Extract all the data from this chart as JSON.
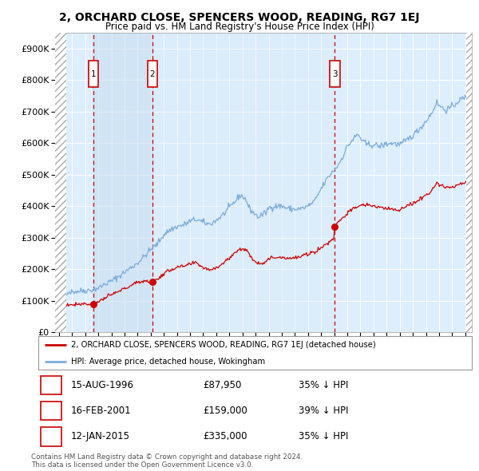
{
  "title": "2, ORCHARD CLOSE, SPENCERS WOOD, READING, RG7 1EJ",
  "subtitle": "Price paid vs. HM Land Registry's House Price Index (HPI)",
  "hpi_color": "#7aacdc",
  "price_color": "#cc0000",
  "plot_bg_color": "#ddeeff",
  "hatch_color": "#bbbbbb",
  "grid_color": "#ffffff",
  "legend_label_price": "2, ORCHARD CLOSE, SPENCERS WOOD, READING, RG7 1EJ (detached house)",
  "legend_label_hpi": "HPI: Average price, detached house, Wokingham",
  "sales": [
    {
      "num": 1,
      "date_dec": 1996.62,
      "price": 87950,
      "label": "15-AUG-1996",
      "price_str": "£87,950",
      "pct": "35% ↓ HPI"
    },
    {
      "num": 2,
      "date_dec": 2001.12,
      "price": 159000,
      "label": "16-FEB-2001",
      "price_str": "£159,000",
      "pct": "39% ↓ HPI"
    },
    {
      "num": 3,
      "date_dec": 2015.04,
      "price": 335000,
      "label": "12-JAN-2015",
      "price_str": "£335,000",
      "pct": "35% ↓ HPI"
    }
  ],
  "footer": "Contains HM Land Registry data © Crown copyright and database right 2024.\nThis data is licensed under the Open Government Licence v3.0.",
  "yticks": [
    0,
    100000,
    200000,
    300000,
    400000,
    500000,
    600000,
    700000,
    800000,
    900000
  ],
  "ytick_labels": [
    "£0",
    "£100K",
    "£200K",
    "£300K",
    "£400K",
    "£500K",
    "£600K",
    "£700K",
    "£800K",
    "£900K"
  ],
  "xlim_start": 1993.7,
  "xlim_end": 2025.5,
  "ylim_max": 950000,
  "hpi_anchors": [
    [
      1993.7,
      120000
    ],
    [
      1994.0,
      122000
    ],
    [
      1994.5,
      126000
    ],
    [
      1995.0,
      128000
    ],
    [
      1995.5,
      130000
    ],
    [
      1996.0,
      132000
    ],
    [
      1996.5,
      134000
    ],
    [
      1997.0,
      140000
    ],
    [
      1997.5,
      152000
    ],
    [
      1998.0,
      162000
    ],
    [
      1998.5,
      175000
    ],
    [
      1999.0,
      190000
    ],
    [
      1999.5,
      205000
    ],
    [
      2000.0,
      220000
    ],
    [
      2000.5,
      240000
    ],
    [
      2001.0,
      262000
    ],
    [
      2001.5,
      280000
    ],
    [
      2002.0,
      310000
    ],
    [
      2002.5,
      325000
    ],
    [
      2003.0,
      335000
    ],
    [
      2003.5,
      340000
    ],
    [
      2004.0,
      352000
    ],
    [
      2004.5,
      358000
    ],
    [
      2005.0,
      348000
    ],
    [
      2005.5,
      342000
    ],
    [
      2006.0,
      355000
    ],
    [
      2006.5,
      372000
    ],
    [
      2007.0,
      395000
    ],
    [
      2007.5,
      418000
    ],
    [
      2007.8,
      435000
    ],
    [
      2008.2,
      425000
    ],
    [
      2008.5,
      395000
    ],
    [
      2008.8,
      380000
    ],
    [
      2009.2,
      365000
    ],
    [
      2009.5,
      372000
    ],
    [
      2009.8,
      380000
    ],
    [
      2010.0,
      395000
    ],
    [
      2010.5,
      400000
    ],
    [
      2011.0,
      400000
    ],
    [
      2011.5,
      392000
    ],
    [
      2012.0,
      390000
    ],
    [
      2012.5,
      392000
    ],
    [
      2013.0,
      400000
    ],
    [
      2013.5,
      415000
    ],
    [
      2014.0,
      455000
    ],
    [
      2014.5,
      490000
    ],
    [
      2015.0,
      515000
    ],
    [
      2015.3,
      530000
    ],
    [
      2015.8,
      570000
    ],
    [
      2016.0,
      590000
    ],
    [
      2016.5,
      615000
    ],
    [
      2016.8,
      628000
    ],
    [
      2017.2,
      605000
    ],
    [
      2017.5,
      595000
    ],
    [
      2018.0,
      595000
    ],
    [
      2018.5,
      590000
    ],
    [
      2019.0,
      598000
    ],
    [
      2019.5,
      600000
    ],
    [
      2020.0,
      595000
    ],
    [
      2020.5,
      608000
    ],
    [
      2021.0,
      625000
    ],
    [
      2021.5,
      645000
    ],
    [
      2022.0,
      670000
    ],
    [
      2022.5,
      700000
    ],
    [
      2022.8,
      730000
    ],
    [
      2023.0,
      720000
    ],
    [
      2023.5,
      705000
    ],
    [
      2024.0,
      715000
    ],
    [
      2024.5,
      735000
    ],
    [
      2025.0,
      745000
    ],
    [
      2025.3,
      750000
    ]
  ],
  "red_anchors": [
    [
      1993.7,
      80000
    ],
    [
      1994.0,
      82000
    ],
    [
      1994.5,
      85000
    ],
    [
      1995.0,
      88000
    ],
    [
      1995.5,
      90000
    ],
    [
      1996.0,
      90000
    ],
    [
      1996.62,
      87950
    ],
    [
      1997.0,
      96000
    ],
    [
      1997.5,
      108000
    ],
    [
      1998.0,
      118000
    ],
    [
      1998.5,
      128000
    ],
    [
      1999.0,
      138000
    ],
    [
      1999.5,
      148000
    ],
    [
      2000.0,
      158000
    ],
    [
      2000.5,
      163000
    ],
    [
      2001.0,
      160000
    ],
    [
      2001.12,
      159000
    ],
    [
      2001.5,
      168000
    ],
    [
      2002.0,
      185000
    ],
    [
      2002.5,
      198000
    ],
    [
      2003.0,
      205000
    ],
    [
      2003.5,
      208000
    ],
    [
      2004.0,
      215000
    ],
    [
      2004.5,
      220000
    ],
    [
      2005.0,
      205000
    ],
    [
      2005.5,
      198000
    ],
    [
      2006.0,
      205000
    ],
    [
      2006.5,
      218000
    ],
    [
      2007.0,
      235000
    ],
    [
      2007.5,
      255000
    ],
    [
      2007.8,
      265000
    ],
    [
      2008.2,
      262000
    ],
    [
      2008.5,
      248000
    ],
    [
      2008.8,
      232000
    ],
    [
      2009.2,
      218000
    ],
    [
      2009.5,
      220000
    ],
    [
      2009.8,
      225000
    ],
    [
      2010.0,
      232000
    ],
    [
      2010.5,
      238000
    ],
    [
      2011.0,
      238000
    ],
    [
      2011.5,
      235000
    ],
    [
      2012.0,
      235000
    ],
    [
      2012.5,
      240000
    ],
    [
      2013.0,
      248000
    ],
    [
      2013.5,
      255000
    ],
    [
      2014.0,
      268000
    ],
    [
      2014.5,
      282000
    ],
    [
      2015.0,
      300000
    ],
    [
      2015.04,
      335000
    ],
    [
      2015.3,
      352000
    ],
    [
      2015.8,
      368000
    ],
    [
      2016.0,
      378000
    ],
    [
      2016.5,
      392000
    ],
    [
      2016.8,
      400000
    ],
    [
      2017.0,
      400000
    ],
    [
      2017.2,
      403000
    ],
    [
      2017.5,
      405000
    ],
    [
      2018.0,
      400000
    ],
    [
      2018.5,
      395000
    ],
    [
      2019.0,
      393000
    ],
    [
      2019.5,
      390000
    ],
    [
      2020.0,
      388000
    ],
    [
      2020.5,
      398000
    ],
    [
      2021.0,
      408000
    ],
    [
      2021.5,
      420000
    ],
    [
      2022.0,
      435000
    ],
    [
      2022.5,
      455000
    ],
    [
      2022.8,
      470000
    ],
    [
      2023.0,
      468000
    ],
    [
      2023.5,
      462000
    ],
    [
      2024.0,
      458000
    ],
    [
      2024.5,
      468000
    ],
    [
      2025.0,
      475000
    ],
    [
      2025.3,
      478000
    ]
  ]
}
